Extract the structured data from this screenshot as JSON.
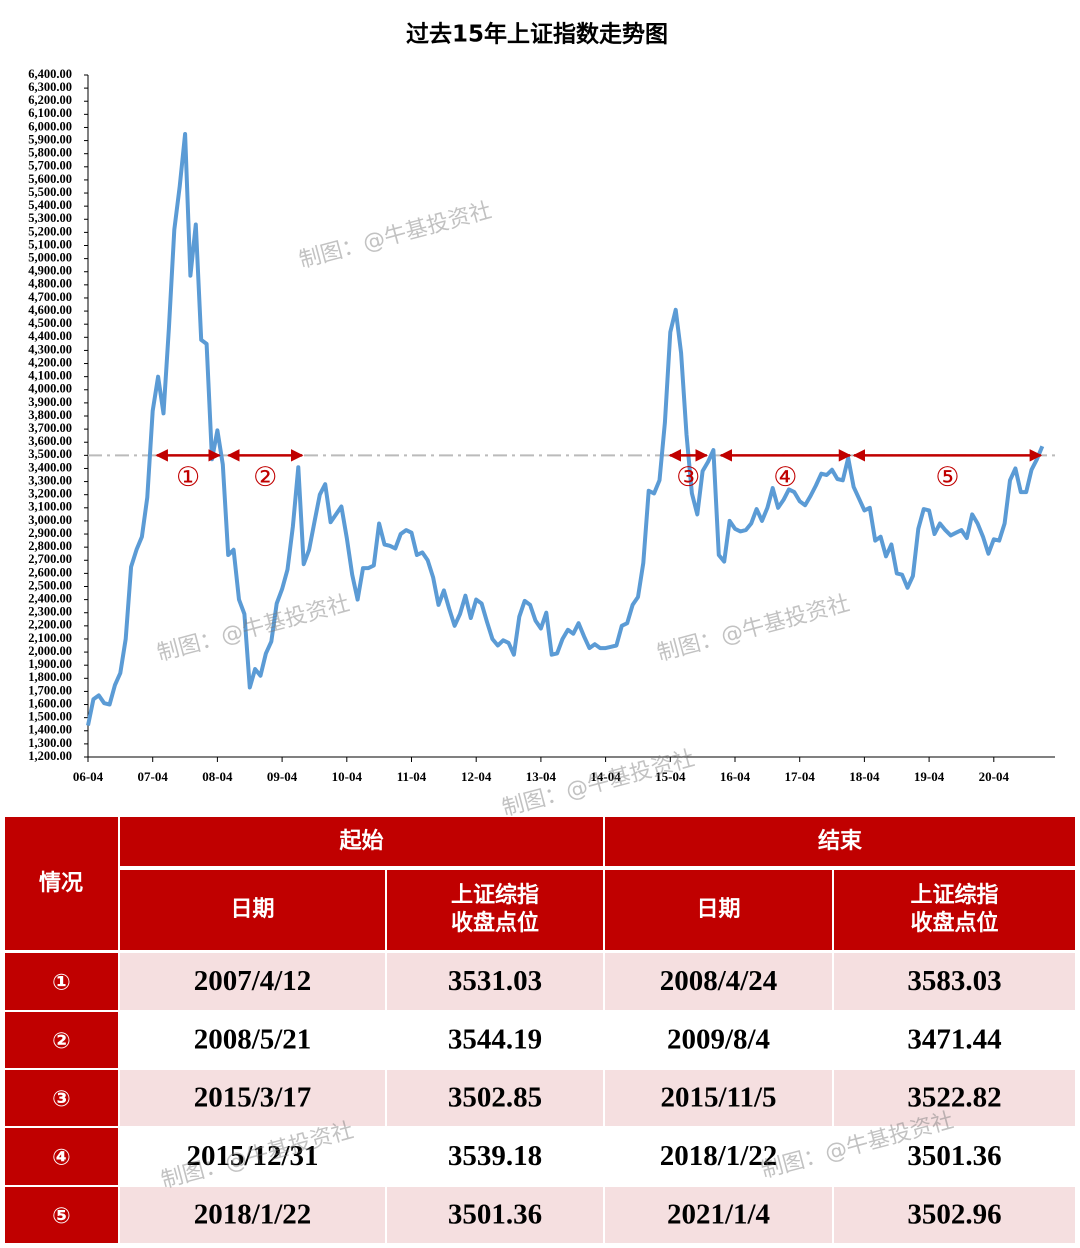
{
  "chart_data": {
    "type": "line",
    "title": "过去15年上证指数走势图",
    "categories": [
      "06-04",
      null,
      null,
      null,
      null,
      null,
      null,
      null,
      null,
      null,
      null,
      null,
      "07-04",
      null,
      null,
      null,
      null,
      null,
      null,
      null,
      null,
      null,
      null,
      null,
      "08-04",
      null,
      null,
      null,
      null,
      null,
      null,
      null,
      null,
      null,
      null,
      null,
      "09-04",
      null,
      null,
      null,
      null,
      null,
      null,
      null,
      null,
      null,
      null,
      null,
      "10-04",
      null,
      null,
      null,
      null,
      null,
      null,
      null,
      null,
      null,
      null,
      null,
      "11-04",
      null,
      null,
      null,
      null,
      null,
      null,
      null,
      null,
      null,
      null,
      null,
      "12-04",
      null,
      null,
      null,
      null,
      null,
      null,
      null,
      null,
      null,
      null,
      null,
      "13-04",
      null,
      null,
      null,
      null,
      null,
      null,
      null,
      null,
      null,
      null,
      null,
      "14-04",
      null,
      null,
      null,
      null,
      null,
      null,
      null,
      null,
      null,
      null,
      null,
      "15-04",
      null,
      null,
      null,
      null,
      null,
      null,
      null,
      null,
      null,
      null,
      null,
      "16-04",
      null,
      null,
      null,
      null,
      null,
      null,
      null,
      null,
      null,
      null,
      null,
      "17-04",
      null,
      null,
      null,
      null,
      null,
      null,
      null,
      null,
      null,
      null,
      null,
      "18-04",
      null,
      null,
      null,
      null,
      null,
      null,
      null,
      null,
      null,
      null,
      null,
      "19-04",
      null,
      null,
      null,
      null,
      null,
      null,
      null,
      null,
      null,
      null,
      null,
      "20-04",
      null,
      null,
      null,
      null,
      null,
      null,
      null,
      null,
      null
    ],
    "series": [
      {
        "color": "#5b9bd5",
        "values": [
          1440,
          1640,
          1670,
          1610,
          1600,
          1750,
          1840,
          2100,
          2650,
          2780,
          2880,
          3180,
          3840,
          4100,
          3820,
          4470,
          5220,
          5550,
          5950,
          4870,
          5260,
          4380,
          4350,
          3470,
          3690,
          3430,
          2740,
          2780,
          2400,
          2290,
          1730,
          1870,
          1820,
          1990,
          2080,
          2370,
          2480,
          2630,
          2960,
          3410,
          2670,
          2780,
          2990,
          3200,
          3280,
          2990,
          3050,
          3110,
          2870,
          2590,
          2400,
          2640,
          2640,
          2660,
          2980,
          2820,
          2810,
          2790,
          2900,
          2930,
          2910,
          2740,
          2760,
          2700,
          2570,
          2360,
          2470,
          2330,
          2200,
          2290,
          2430,
          2260,
          2400,
          2370,
          2230,
          2100,
          2050,
          2090,
          2070,
          1980,
          2270,
          2390,
          2360,
          2240,
          2180,
          2300,
          1980,
          1990,
          2100,
          2170,
          2140,
          2220,
          2120,
          2030,
          2060,
          2030,
          2030,
          2040,
          2050,
          2200,
          2220,
          2360,
          2420,
          2680,
          3230,
          3210,
          3310,
          3750,
          4440,
          4610,
          4280,
          3660,
          3210,
          3050,
          3380,
          3450,
          3540,
          2740,
          2690,
          3000,
          2940,
          2920,
          2930,
          2980,
          3090,
          3000,
          3100,
          3250,
          3100,
          3160,
          3240,
          3220,
          3150,
          3120,
          3190,
          3270,
          3360,
          3350,
          3390,
          3320,
          3310,
          3480,
          3260,
          3170,
          3080,
          3100,
          2850,
          2880,
          2730,
          2820,
          2600,
          2590,
          2490,
          2580,
          2940,
          3090,
          3080,
          2900,
          2980,
          2930,
          2890,
          2910,
          2930,
          2870,
          3050,
          2980,
          2880,
          2750,
          2860,
          2850,
          2980,
          3310,
          3400,
          3220,
          3220,
          3390,
          3470,
          3570
        ]
      }
    ],
    "ylim": [
      1200,
      6400
    ],
    "yticks": [
      {
        "value": 1200,
        "label": "1,200.00"
      },
      {
        "value": 1300,
        "label": "1,300.00"
      },
      {
        "value": 1400,
        "label": "1,400.00"
      },
      {
        "value": 1500,
        "label": "1,500.00"
      },
      {
        "value": 1600,
        "label": "1,600.00"
      },
      {
        "value": 1700,
        "label": "1,700.00"
      },
      {
        "value": 1800,
        "label": "1,800.00"
      },
      {
        "value": 1900,
        "label": "1,900.00"
      },
      {
        "value": 2000,
        "label": "2,000.00"
      },
      {
        "value": 2100,
        "label": "2,100.00"
      },
      {
        "value": 2200,
        "label": "2,200.00"
      },
      {
        "value": 2300,
        "label": "2,300.00"
      },
      {
        "value": 2400,
        "label": "2,400.00"
      },
      {
        "value": 2500,
        "label": "2,500.00"
      },
      {
        "value": 2600,
        "label": "2,600.00"
      },
      {
        "value": 2700,
        "label": "2,700.00"
      },
      {
        "value": 2800,
        "label": "2,800.00"
      },
      {
        "value": 2900,
        "label": "2,900.00"
      },
      {
        "value": 3000,
        "label": "3,000.00"
      },
      {
        "value": 3100,
        "label": "3,100.00"
      },
      {
        "value": 3200,
        "label": "3,200.00"
      },
      {
        "value": 3300,
        "label": "3,300.00"
      },
      {
        "value": 3400,
        "label": "3,400.00"
      },
      {
        "value": 3500,
        "label": "3,500.00"
      },
      {
        "value": 3600,
        "label": "3,600.00"
      },
      {
        "value": 3700,
        "label": "3,700.00"
      },
      {
        "value": 3800,
        "label": "3,800.00"
      },
      {
        "value": 3900,
        "label": "3,900.00"
      },
      {
        "value": 4000,
        "label": "4,000.00"
      },
      {
        "value": 4100,
        "label": "4,100.00"
      },
      {
        "value": 4200,
        "label": "4,200.00"
      },
      {
        "value": 4300,
        "label": "4,300.00"
      },
      {
        "value": 4400,
        "label": "4,400.00"
      },
      {
        "value": 4500,
        "label": "4,500.00"
      },
      {
        "value": 4600,
        "label": "4,600.00"
      },
      {
        "value": 4700,
        "label": "4,700.00"
      },
      {
        "value": 4800,
        "label": "4,800.00"
      },
      {
        "value": 4900,
        "label": "4,900.00"
      },
      {
        "value": 5000,
        "label": "5,000.00"
      },
      {
        "value": 5100,
        "label": "5,100.00"
      },
      {
        "value": 5200,
        "label": "5,200.00"
      },
      {
        "value": 5300,
        "label": "5,300.00"
      },
      {
        "value": 5400,
        "label": "5,400.00"
      },
      {
        "value": 5500,
        "label": "5,500.00"
      },
      {
        "value": 5600,
        "label": "5,600.00"
      },
      {
        "value": 5700,
        "label": "5,700.00"
      },
      {
        "value": 5800,
        "label": "5,800.00"
      },
      {
        "value": 5900,
        "label": "5,900.00"
      },
      {
        "value": 6000,
        "label": "6,000.00"
      },
      {
        "value": 6100,
        "label": "6,100.00"
      },
      {
        "value": 6200,
        "label": "6,200.00"
      },
      {
        "value": 6300,
        "label": "6,300.00"
      },
      {
        "value": 6400,
        "label": "6,400.00"
      }
    ],
    "reference_line": 3500,
    "annotation_color": "#c00000",
    "grid": false
  },
  "watermark": "制图：@牛基投资社",
  "table": {
    "corner": "情况",
    "groups": [
      "起始",
      "结束"
    ],
    "columns": [
      [
        "日期"
      ],
      [
        "上证综指",
        "收盘点位"
      ]
    ],
    "rows": [
      [
        "①",
        "2007/4/12",
        3531.03,
        "2008/4/24",
        3583.03
      ],
      [
        "②",
        "2008/5/21",
        3544.19,
        "2009/8/4",
        3471.44
      ],
      [
        "③",
        "2015/3/17",
        3502.85,
        "2015/11/5",
        3522.82
      ],
      [
        "④",
        "2015/12/31",
        3539.18,
        "2018/1/22",
        3501.36
      ],
      [
        "⑤",
        "2018/1/22",
        3501.36,
        "2021/1/4",
        3502.96
      ]
    ]
  }
}
